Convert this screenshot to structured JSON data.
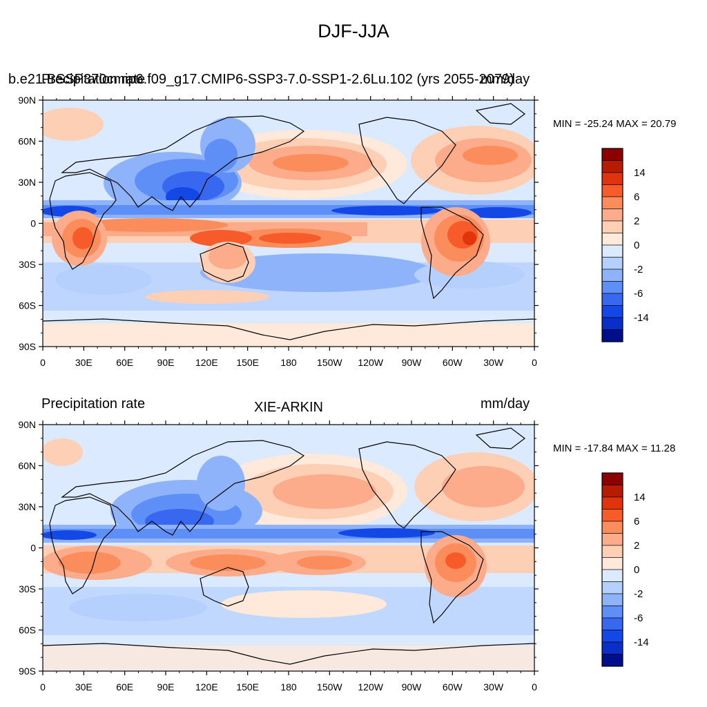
{
  "main_title": "DJF-JJA",
  "panels": [
    {
      "left_title": "Precipitation rate",
      "center_title": "b.e21.BSSP370cmip6.f09_g17.CMIP6-SSP3-7.0-SSP1-2.6Lu.102 (yrs 2055-2079)",
      "right_title": "mm/day",
      "minmax": "MIN = -25.24 MAX =  20.79"
    },
    {
      "left_title": "Precipitation rate",
      "center_title": "XIE-ARKIN",
      "right_title": "mm/day",
      "minmax": "MIN = -17.84 MAX =  11.28"
    }
  ],
  "axes": {
    "lat_ticks": [
      "90N",
      "60N",
      "30N",
      "0",
      "30S",
      "60S",
      "90S"
    ],
    "lon_ticks": [
      "0",
      "30E",
      "60E",
      "90E",
      "120E",
      "150E",
      "180",
      "150W",
      "120W",
      "90W",
      "60W",
      "30W",
      "0"
    ]
  },
  "colorbar": {
    "labels": [
      "14",
      "6",
      "2",
      "0",
      "-2",
      "-6",
      "-14"
    ],
    "colors": [
      "#8b0000",
      "#b81c00",
      "#e2340c",
      "#f75b2a",
      "#fb8c5b",
      "#fcac8a",
      "#fdd0b6",
      "#fee9da",
      "#dbeafe",
      "#b6d0fd",
      "#8eb3fb",
      "#5e8ff7",
      "#3868ef",
      "#1448e6",
      "#0a2fc8",
      "#000e8c"
    ]
  }
}
